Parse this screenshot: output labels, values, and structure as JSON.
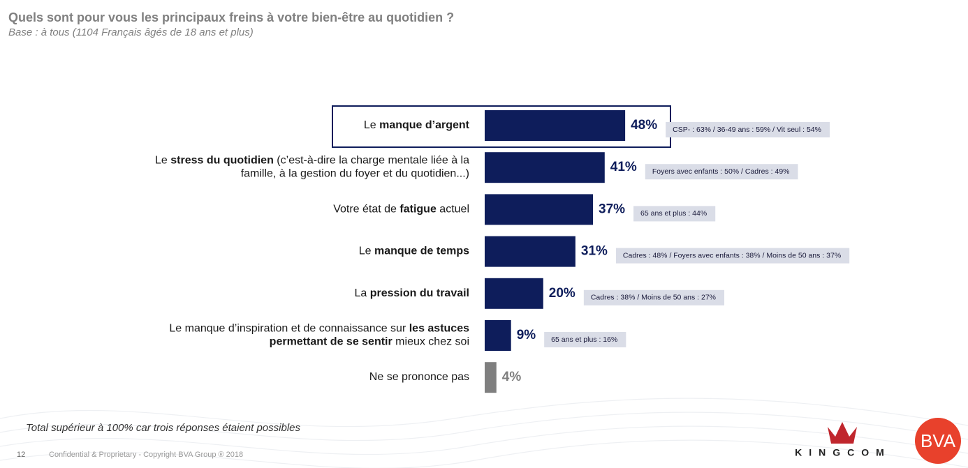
{
  "chart_data": {
    "type": "hbar",
    "title": "Quels sont pour vous les principaux freins à votre bien-être au quotidien ?",
    "subtitle": "Base : à tous (1104 Français âgés de 18 ans et plus)",
    "categories": [
      [
        [
          {
            "text": "Le "
          },
          {
            "text": "manque d’argent",
            "bold": true
          }
        ]
      ],
      [
        [
          {
            "text": "Le "
          },
          {
            "text": "stress du quotidien",
            "bold": true
          },
          {
            "text": " (c’est-à-dire la charge mentale liée à la"
          }
        ],
        [
          {
            "text": "famille, à la gestion du foyer et du quotidien...)"
          }
        ]
      ],
      [
        [
          {
            "text": "Votre état de "
          },
          {
            "text": "fatigue",
            "bold": true
          },
          {
            "text": " actuel"
          }
        ]
      ],
      [
        [
          {
            "text": "Le "
          },
          {
            "text": "manque de temps",
            "bold": true
          }
        ]
      ],
      [
        [
          {
            "text": "La "
          },
          {
            "text": "pression du travail",
            "bold": true
          }
        ]
      ],
      [
        [
          {
            "text": "Le manque d’inspiration et de connaissance sur "
          },
          {
            "text": "les astuces",
            "bold": true
          }
        ],
        [
          {
            "text": "permettant de se sentir",
            "bold": true
          },
          {
            "text": " mieux chez soi"
          }
        ]
      ],
      [
        [
          {
            "text": "Ne se prononce pas"
          }
        ]
      ]
    ],
    "values": [
      48,
      41,
      37,
      31,
      20,
      9,
      4
    ],
    "value_labels": [
      "48%",
      "41%",
      "37%",
      "31%",
      "20%",
      "9%",
      "4%"
    ],
    "colors": [
      "#0e1d5b",
      "#0e1d5b",
      "#0e1d5b",
      "#0e1d5b",
      "#0e1d5b",
      "#0e1d5b",
      "#7f7f7f"
    ],
    "annotations": [
      "CSP- : 63% / 36-49 ans : 59% / Vit seul : 54%",
      "Foyers avec enfants : 50% / Cadres : 49%",
      "65 ans et plus : 44%",
      "Cadres : 48% / Foyers avec enfants : 38% / Moins de 50 ans : 37%",
      "Cadres : 38% / Moins de 50 ans : 27%",
      "65 ans et plus : 16%",
      null
    ],
    "footnote": "Total supérieur à 100% car trois réponses étaient possibles"
  },
  "footer": {
    "page": "12",
    "copyright": "Confidential & Proprietary - Copyright BVA Group ®  2018"
  },
  "logos": {
    "kingcom": "KINGCOM",
    "bva": "BVA"
  }
}
